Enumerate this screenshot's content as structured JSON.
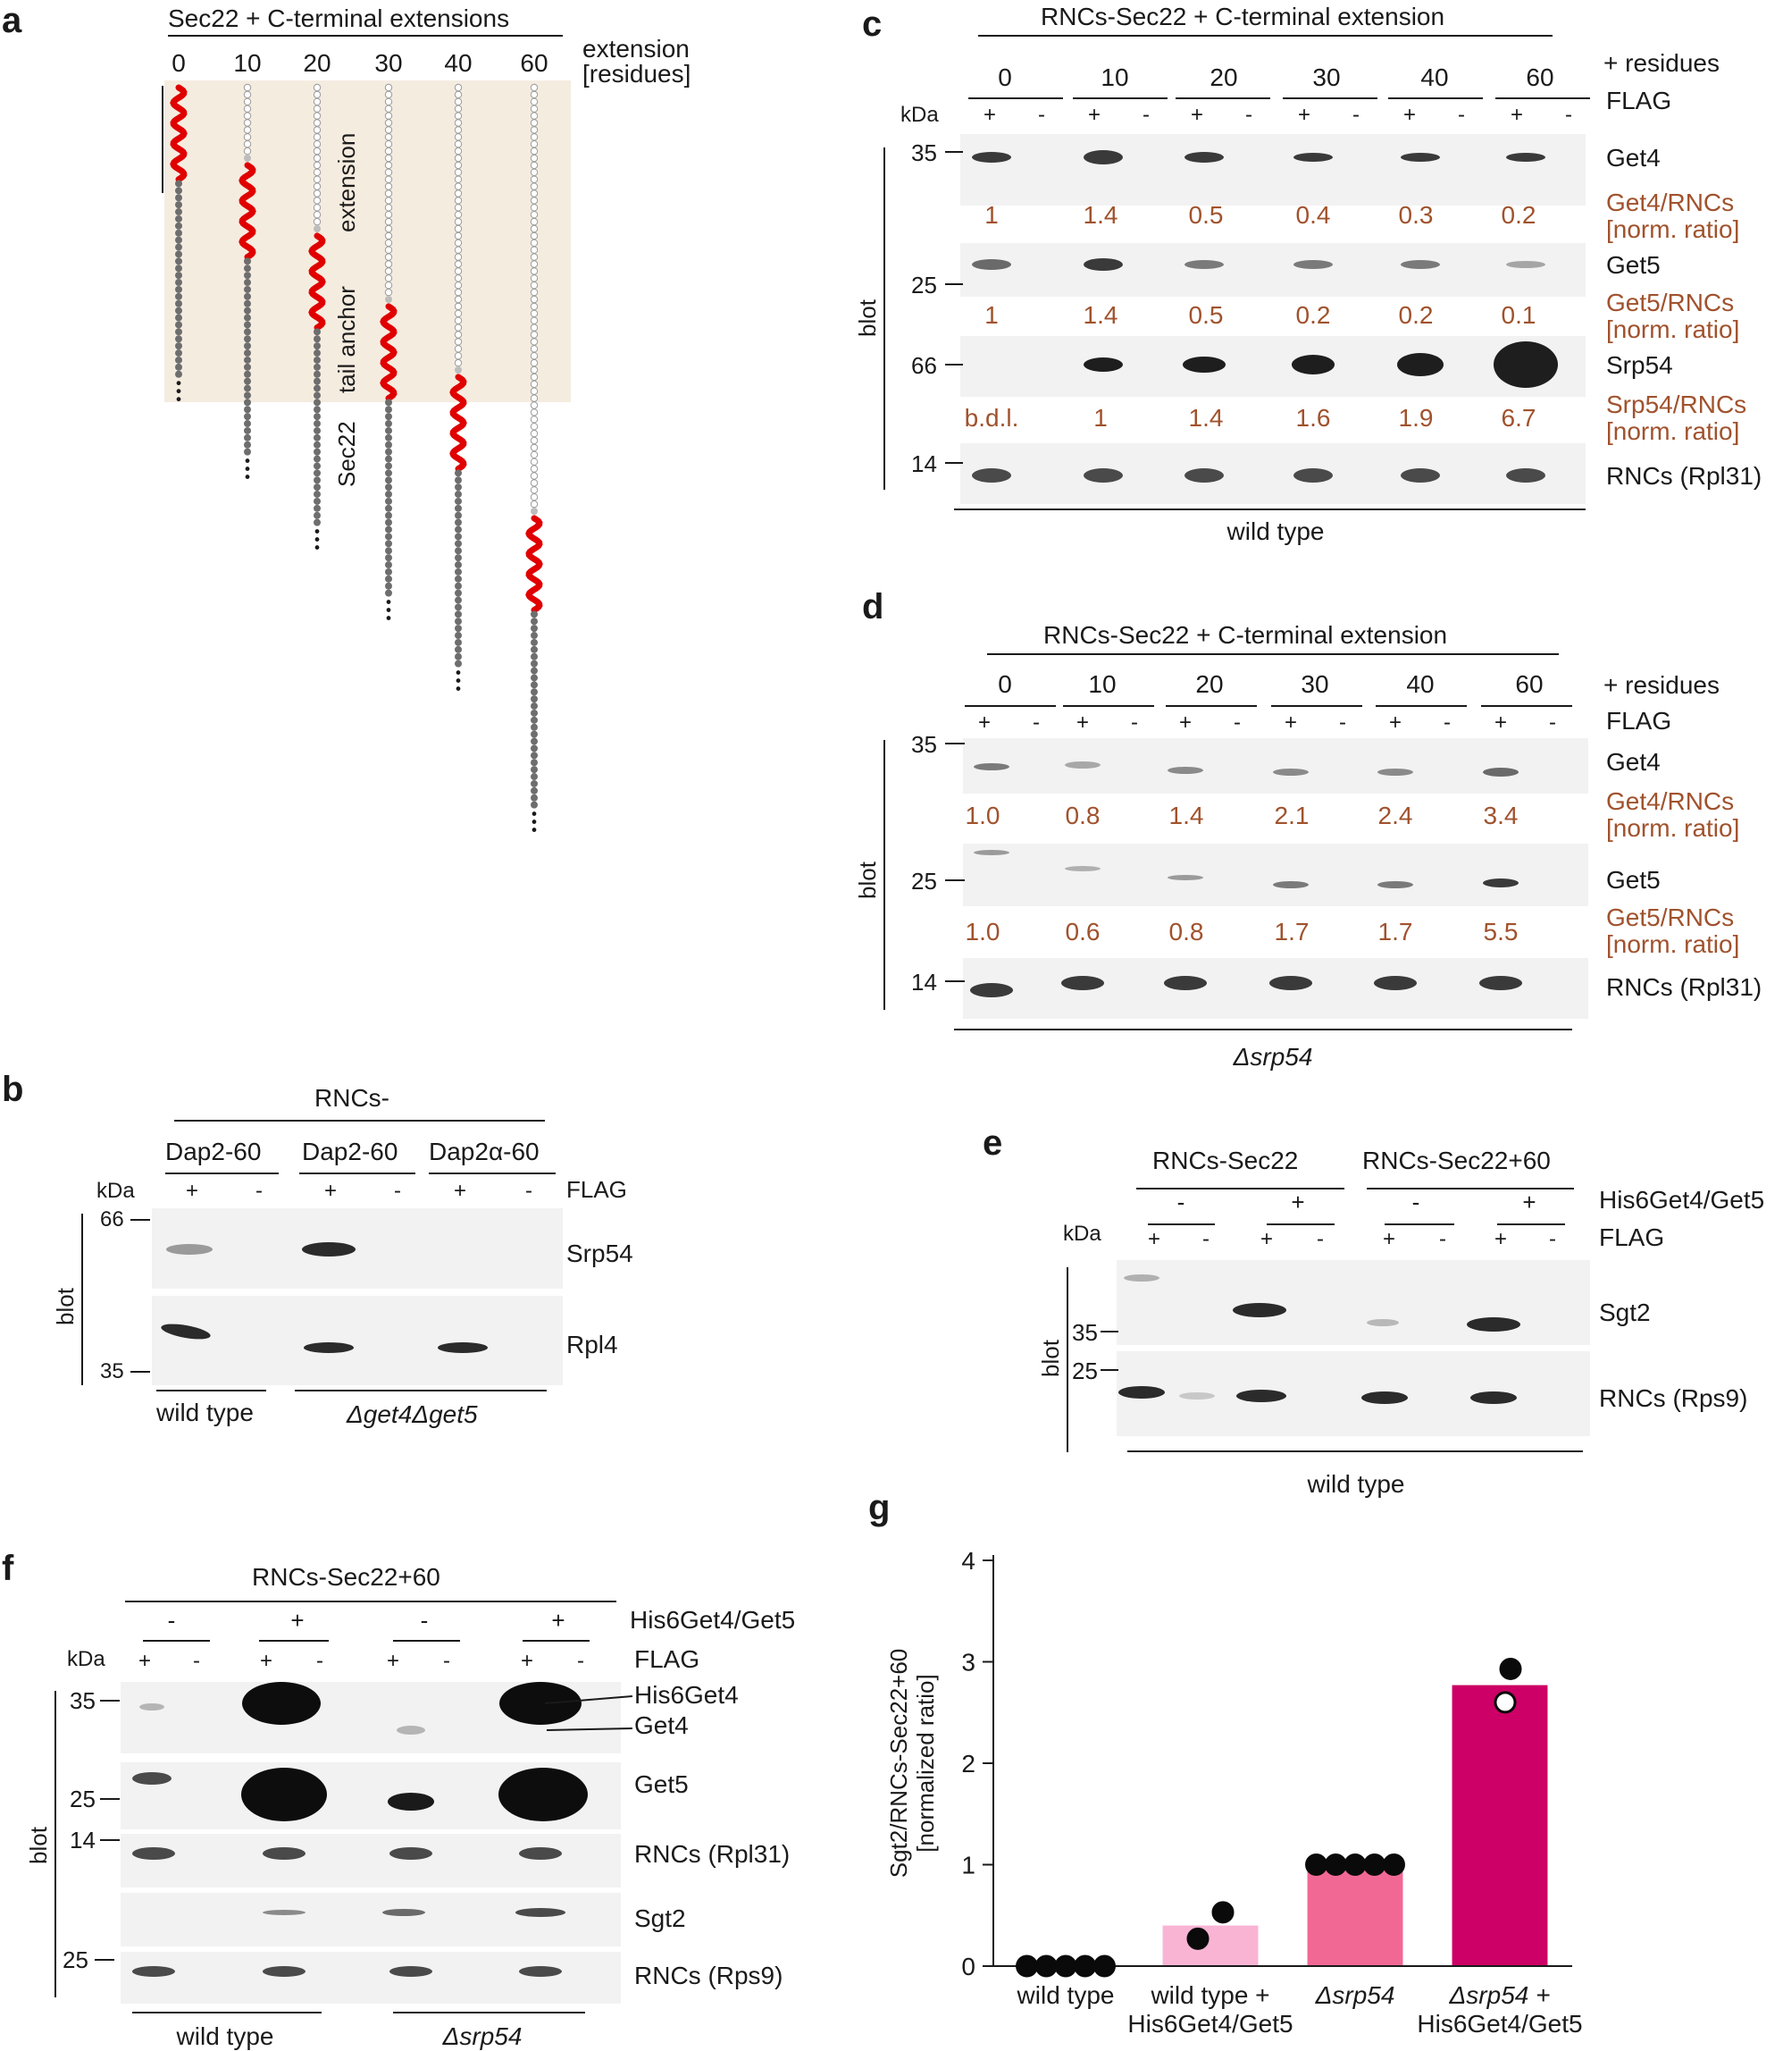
{
  "panels": {
    "a": {
      "label": "a",
      "title": "Sec22 + C-terminal extensions",
      "extensions": [
        "0",
        "10",
        "20",
        "30",
        "40",
        "60"
      ],
      "axis_title_1": "extension",
      "axis_title_2": "[residues]",
      "label_extension": "extension",
      "label_tail_anchor": "tail anchor",
      "label_sec22": "Sec22",
      "colors": {
        "helix": "#e00000",
        "sec22": "#6e6e6e",
        "extension": "#ffffff",
        "link": "#bdbdbd",
        "shade": "#f5ece0"
      }
    },
    "b": {
      "label": "b",
      "header": "RNCs-",
      "constructs": [
        "Dap2-60",
        "Dap2-60",
        "Dap2α-60"
      ],
      "flag": [
        "+",
        "-",
        "+",
        "-",
        "+",
        "-"
      ],
      "flag_label": "FLAG",
      "kda": "kDa",
      "mw": [
        "66",
        "35"
      ],
      "blot": "blot",
      "rows": [
        "Srp54",
        "Rpl4"
      ],
      "strain1": "wild type",
      "strain2": "Δget4Δget5"
    },
    "c": {
      "label": "c",
      "header": "RNCs-Sec22 + C-terminal extension",
      "residues": [
        "0",
        "10",
        "20",
        "30",
        "40",
        "60"
      ],
      "residues_label": "+ residues",
      "flag_label": "FLAG",
      "kda": "kDa",
      "mw": [
        "35",
        "25",
        "66",
        "14"
      ],
      "blot": "blot",
      "rows": [
        "Get4",
        "Get5",
        "Srp54",
        "RNCs (Rpl31)"
      ],
      "ratio_labels": [
        "Get4/RNCs",
        "Get5/RNCs",
        "Srp54/RNCs"
      ],
      "norm": "[norm. ratio]",
      "get4_ratio": [
        "1",
        "1.4",
        "0.5",
        "0.4",
        "0.3",
        "0.2"
      ],
      "get5_ratio": [
        "1",
        "1.4",
        "0.5",
        "0.2",
        "0.2",
        "0.1"
      ],
      "srp54_ratio": [
        "b.d.l.",
        "1",
        "1.4",
        "1.6",
        "1.9",
        "6.7"
      ],
      "strain": "wild type"
    },
    "d": {
      "label": "d",
      "header": "RNCs-Sec22 + C-terminal extension",
      "residues": [
        "0",
        "10",
        "20",
        "30",
        "40",
        "60"
      ],
      "residues_label": "+ residues",
      "flag_label": "FLAG",
      "mw": [
        "35",
        "25",
        "14"
      ],
      "blot": "blot",
      "rows": [
        "Get4",
        "Get5",
        "RNCs (Rpl31)"
      ],
      "ratio_labels": [
        "Get4/RNCs",
        "Get5/RNCs"
      ],
      "norm": "[norm. ratio]",
      "get4_ratio": [
        "1.0",
        "0.8",
        "1.4",
        "2.1",
        "2.4",
        "3.4"
      ],
      "get5_ratio": [
        "1.0",
        "0.6",
        "0.8",
        "1.7",
        "1.7",
        "5.5"
      ],
      "strain": "Δsrp54"
    },
    "e": {
      "label": "e",
      "groups": [
        "RNCs-Sec22",
        "RNCs-Sec22+60"
      ],
      "his": [
        "-",
        "+",
        "-",
        "+"
      ],
      "his_label": "His6Get4/Get5",
      "flag": [
        "+",
        "-",
        "+",
        "-",
        "+",
        "-",
        "+",
        "-"
      ],
      "flag_label": "FLAG",
      "kda": "kDa",
      "mw": [
        "35",
        "25"
      ],
      "blot": "blot",
      "rows": [
        "Sgt2",
        "RNCs (Rps9)"
      ],
      "strain": "wild type"
    },
    "f": {
      "label": "f",
      "header": "RNCs-Sec22+60",
      "his": [
        "-",
        "+",
        "-",
        "+"
      ],
      "his_label": "His6Get4/Get5",
      "flag": [
        "+",
        "-",
        "+",
        "-",
        "+",
        "-",
        "+",
        "-"
      ],
      "flag_label": "FLAG",
      "kda": "kDa",
      "mw": [
        "35",
        "25",
        "14",
        "25"
      ],
      "blot": "blot",
      "rows": [
        "His6Get4",
        "Get4",
        "Get5",
        "RNCs (Rpl31)",
        "Sgt2",
        "RNCs (Rps9)"
      ],
      "strain1": "wild type",
      "strain2": "Δsrp54"
    },
    "g": {
      "label": "g"
    }
  },
  "chart_data": {
    "type": "bar",
    "title": "",
    "ylabel": "Sgt2/RNCs-Sec22+60 [normalized ratio]",
    "xlabel": "",
    "ylim": [
      0,
      4
    ],
    "yticks": [
      "0",
      "1",
      "2",
      "3",
      "4"
    ],
    "categories": [
      "wild type",
      "wild type + His6Get4/Get5",
      "Δsrp54",
      "Δsrp54 + His6Get4/Get5"
    ],
    "values": [
      0.0,
      0.4,
      1.0,
      2.77
    ],
    "points": [
      [
        0,
        0,
        0,
        0,
        0
      ],
      [
        0.27,
        0.53
      ],
      [
        1,
        1,
        1,
        1,
        1
      ],
      [
        2.93,
        2.6
      ]
    ],
    "bar_colors": [
      "#ffffff",
      "#f9b4d4",
      "#f26895",
      "#cc0066"
    ]
  }
}
